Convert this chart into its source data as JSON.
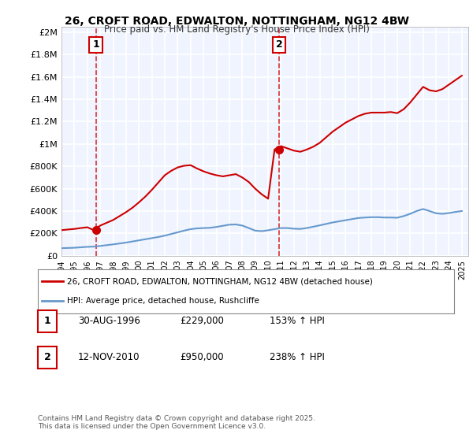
{
  "title": "26, CROFT ROAD, EDWALTON, NOTTINGHAM, NG12 4BW",
  "subtitle": "Price paid vs. HM Land Registry's House Price Index (HPI)",
  "background_color": "#f0f4ff",
  "hatch_color": "#d0d8e8",
  "grid_color": "#ffffff",
  "ylabel_color": "#222222",
  "sale1_date": 1996.66,
  "sale1_price": 229000,
  "sale1_label": "1",
  "sale2_date": 2010.87,
  "sale2_price": 950000,
  "sale2_label": "2",
  "hpi_line_color": "#6699cc",
  "price_line_color": "#cc0000",
  "annotation_line_color": "#cc0000",
  "xmin": 1994,
  "xmax": 2025.5,
  "ymin": 0,
  "ymax": 2050000,
  "yticks": [
    0,
    200000,
    400000,
    600000,
    800000,
    1000000,
    1200000,
    1400000,
    1600000,
    1800000,
    2000000
  ],
  "ytick_labels": [
    "£0",
    "£200K",
    "£400K",
    "£600K",
    "£800K",
    "£1M",
    "£1.2M",
    "£1.4M",
    "£1.6M",
    "£1.8M",
    "£2M"
  ],
  "xticks": [
    1994,
    1995,
    1996,
    1997,
    1998,
    1999,
    2000,
    2001,
    2002,
    2003,
    2004,
    2005,
    2006,
    2007,
    2008,
    2009,
    2010,
    2011,
    2012,
    2013,
    2014,
    2015,
    2016,
    2017,
    2018,
    2019,
    2020,
    2021,
    2022,
    2023,
    2024,
    2025
  ],
  "legend_entries": [
    {
      "label": "26, CROFT ROAD, EDWALTON, NOTTINGHAM, NG12 4BW (detached house)",
      "color": "#cc0000"
    },
    {
      "label": "HPI: Average price, detached house, Rushcliffe",
      "color": "#6699cc"
    }
  ],
  "table_rows": [
    {
      "num": "1",
      "date": "30-AUG-1996",
      "price": "£229,000",
      "hpi": "153% ↑ HPI"
    },
    {
      "num": "2",
      "date": "12-NOV-2010",
      "price": "£950,000",
      "hpi": "238% ↑ HPI"
    }
  ],
  "footer": "Contains HM Land Registry data © Crown copyright and database right 2025.\nThis data is licensed under the Open Government Licence v3.0.",
  "hpi_data_x": [
    1994.0,
    1994.5,
    1995.0,
    1995.5,
    1996.0,
    1996.5,
    1997.0,
    1997.5,
    1998.0,
    1998.5,
    1999.0,
    1999.5,
    2000.0,
    2000.5,
    2001.0,
    2001.5,
    2002.0,
    2002.5,
    2003.0,
    2003.5,
    2004.0,
    2004.5,
    2005.0,
    2005.5,
    2006.0,
    2006.5,
    2007.0,
    2007.5,
    2008.0,
    2008.5,
    2009.0,
    2009.5,
    2010.0,
    2010.5,
    2011.0,
    2011.5,
    2012.0,
    2012.5,
    2013.0,
    2013.5,
    2014.0,
    2014.5,
    2015.0,
    2015.5,
    2016.0,
    2016.5,
    2017.0,
    2017.5,
    2018.0,
    2018.5,
    2019.0,
    2019.5,
    2020.0,
    2020.5,
    2021.0,
    2021.5,
    2022.0,
    2022.5,
    2023.0,
    2023.5,
    2024.0,
    2024.5,
    2025.0
  ],
  "hpi_data_y": [
    68000,
    70000,
    72000,
    76000,
    80000,
    82000,
    88000,
    95000,
    102000,
    110000,
    118000,
    128000,
    138000,
    148000,
    158000,
    168000,
    180000,
    195000,
    210000,
    225000,
    238000,
    245000,
    248000,
    250000,
    258000,
    268000,
    278000,
    280000,
    270000,
    248000,
    225000,
    220000,
    228000,
    238000,
    248000,
    248000,
    242000,
    240000,
    248000,
    260000,
    272000,
    285000,
    298000,
    308000,
    318000,
    328000,
    338000,
    342000,
    345000,
    345000,
    342000,
    342000,
    340000,
    355000,
    375000,
    400000,
    418000,
    400000,
    380000,
    375000,
    382000,
    392000,
    400000
  ],
  "price_data_x": [
    1994.0,
    1994.5,
    1995.0,
    1995.5,
    1996.0,
    1996.5,
    1997.0,
    1997.5,
    1998.0,
    1998.5,
    1999.0,
    1999.5,
    2000.0,
    2000.5,
    2001.0,
    2001.5,
    2002.0,
    2002.5,
    2003.0,
    2003.5,
    2004.0,
    2004.5,
    2005.0,
    2005.5,
    2006.0,
    2006.5,
    2007.0,
    2007.5,
    2008.0,
    2008.5,
    2009.0,
    2009.5,
    2010.0,
    2010.5,
    2011.0,
    2011.5,
    2012.0,
    2012.5,
    2013.0,
    2013.5,
    2014.0,
    2014.5,
    2015.0,
    2015.5,
    2016.0,
    2016.5,
    2017.0,
    2017.5,
    2018.0,
    2018.5,
    2019.0,
    2019.5,
    2020.0,
    2020.5,
    2021.0,
    2021.5,
    2022.0,
    2022.5,
    2023.0,
    2023.5,
    2024.0,
    2024.5,
    2025.0
  ],
  "price_data_y": [
    229000,
    235000,
    240000,
    248000,
    255000,
    229000,
    270000,
    295000,
    320000,
    355000,
    390000,
    430000,
    478000,
    530000,
    590000,
    655000,
    720000,
    760000,
    790000,
    805000,
    810000,
    780000,
    755000,
    735000,
    720000,
    710000,
    720000,
    730000,
    700000,
    660000,
    600000,
    550000,
    510000,
    950000,
    980000,
    960000,
    940000,
    930000,
    950000,
    975000,
    1010000,
    1060000,
    1110000,
    1150000,
    1190000,
    1220000,
    1250000,
    1270000,
    1280000,
    1280000,
    1280000,
    1285000,
    1275000,
    1310000,
    1370000,
    1440000,
    1510000,
    1480000,
    1470000,
    1490000,
    1530000,
    1570000,
    1610000
  ]
}
